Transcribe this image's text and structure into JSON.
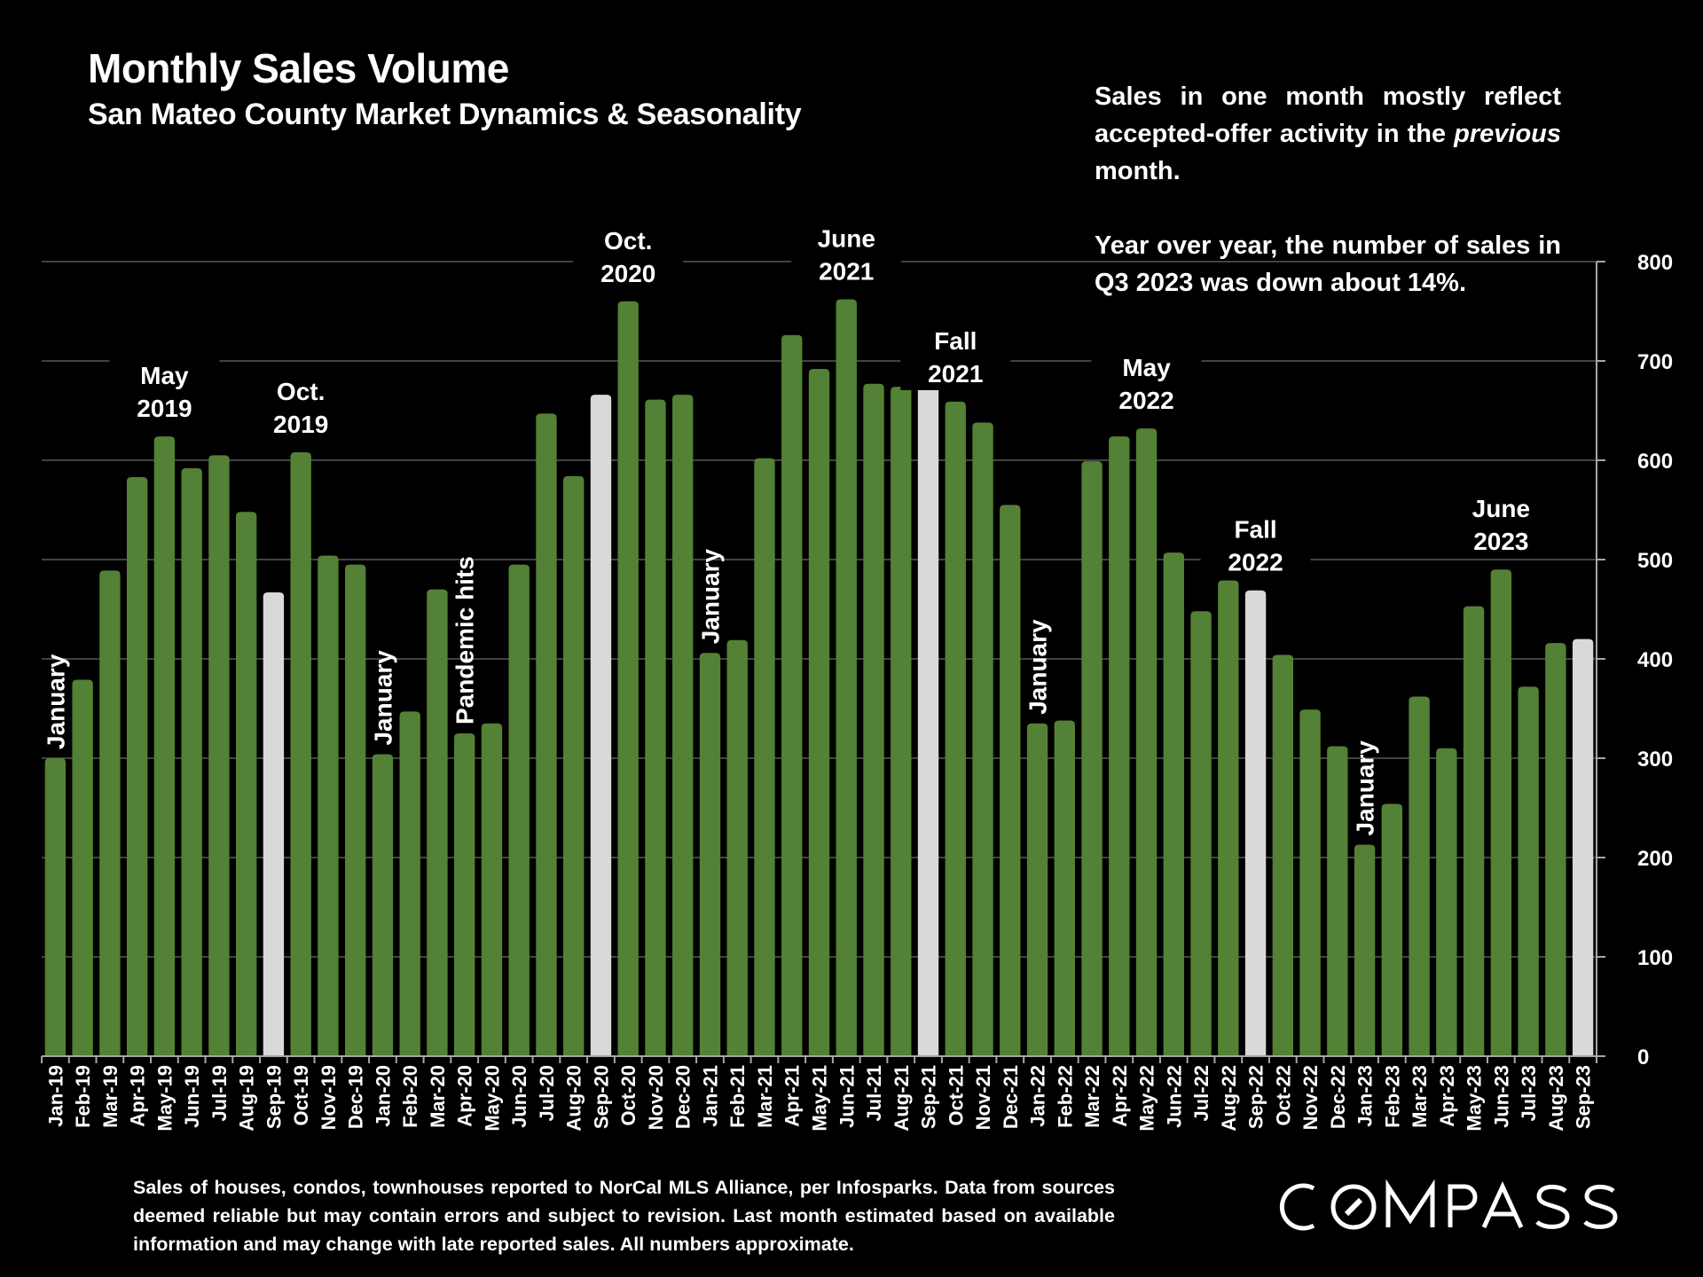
{
  "title": "Monthly Sales Volume",
  "subtitle": "San Mateo County Market Dynamics & Seasonality",
  "note": {
    "para1_before": "Sales in one month mostly reflect accepted-offer activity in the ",
    "para1_em": "previous",
    "para1_after": " month.",
    "para2": "Year over year, the number of sales in Q3 2023 was down about 14%."
  },
  "footer": "Sales of houses, condos, townhouses reported to NorCal MLS Alliance, per Infosparks. Data from sources deemed reliable but may contain errors and subject to revision. Last month estimated based on available information and may change with late reported sales. All numbers approximate.",
  "logo": "COMPASS",
  "colors": {
    "bar": "#538135",
    "highlight": "#d9d9d9",
    "grid": "#595959",
    "axis": "#a6a6a6",
    "text": "#ffffff",
    "background": "#000000"
  },
  "chart_data": {
    "type": "bar",
    "title": "Monthly Sales Volume",
    "subtitle": "San Mateo County Market Dynamics & Seasonality",
    "xlabel": "",
    "ylabel": "",
    "ylim": [
      0,
      800
    ],
    "yticks": [
      0,
      100,
      200,
      300,
      400,
      500,
      600,
      700,
      800
    ],
    "y_axis_side": "right",
    "grid": true,
    "legend": "none",
    "categories": [
      "Jan-19",
      "Feb-19",
      "Mar-19",
      "Apr-19",
      "May-19",
      "Jun-19",
      "Jul-19",
      "Aug-19",
      "Sep-19",
      "Oct-19",
      "Nov-19",
      "Dec-19",
      "Jan-20",
      "Feb-20",
      "Mar-20",
      "Apr-20",
      "May-20",
      "Jun-20",
      "Jul-20",
      "Aug-20",
      "Sep-20",
      "Oct-20",
      "Nov-20",
      "Dec-20",
      "Jan-21",
      "Feb-21",
      "Mar-21",
      "Apr-21",
      "May-21",
      "Jun-21",
      "Jul-21",
      "Aug-21",
      "Sep-21",
      "Oct-21",
      "Nov-21",
      "Dec-21",
      "Jan-22",
      "Feb-22",
      "Mar-22",
      "Apr-22",
      "May-22",
      "Jun-22",
      "Jul-22",
      "Aug-22",
      "Sep-22",
      "Oct-22",
      "Nov-22",
      "Dec-22",
      "Jan-23",
      "Feb-23",
      "Mar-23",
      "Apr-23",
      "May-23",
      "Jun-23",
      "Jul-23",
      "Aug-23",
      "Sep-23"
    ],
    "values": [
      300,
      379,
      489,
      583,
      624,
      592,
      605,
      548,
      467,
      608,
      504,
      495,
      304,
      347,
      470,
      325,
      335,
      495,
      647,
      584,
      666,
      760,
      661,
      666,
      406,
      419,
      602,
      726,
      692,
      762,
      677,
      674,
      677,
      659,
      638,
      555,
      335,
      338,
      599,
      624,
      632,
      507,
      448,
      479,
      469,
      404,
      349,
      312,
      213,
      254,
      362,
      310,
      453,
      490,
      372,
      416,
      420
    ],
    "highlighted": [
      "Sep-19",
      "Sep-20",
      "Sep-21",
      "Sep-22",
      "Sep-23"
    ],
    "annotations": [
      {
        "text": "January",
        "at": "Jan-19",
        "rotated": true
      },
      {
        "text": "May\n2019",
        "at": "May-19",
        "rotated": false
      },
      {
        "text": "Oct.\n2019",
        "at": "Oct-19",
        "rotated": false
      },
      {
        "text": "January",
        "at": "Jan-20",
        "rotated": true
      },
      {
        "text": "Pandemic hits",
        "at": "Apr-20",
        "rotated": true
      },
      {
        "text": "Oct.\n2020",
        "at": "Oct-20",
        "rotated": false
      },
      {
        "text": "January",
        "at": "Jan-21",
        "rotated": true
      },
      {
        "text": "June\n2021",
        "at": "Jun-21",
        "rotated": false
      },
      {
        "text": "Fall\n2021",
        "at": "Oct-21",
        "rotated": false
      },
      {
        "text": "January",
        "at": "Jan-22",
        "rotated": true
      },
      {
        "text": "May\n2022",
        "at": "May-22",
        "rotated": false
      },
      {
        "text": "Fall\n2022",
        "at": "Sep-22",
        "rotated": false
      },
      {
        "text": "January",
        "at": "Jan-23",
        "rotated": true
      },
      {
        "text": "June\n2023",
        "at": "Jun-23",
        "rotated": false
      }
    ]
  }
}
